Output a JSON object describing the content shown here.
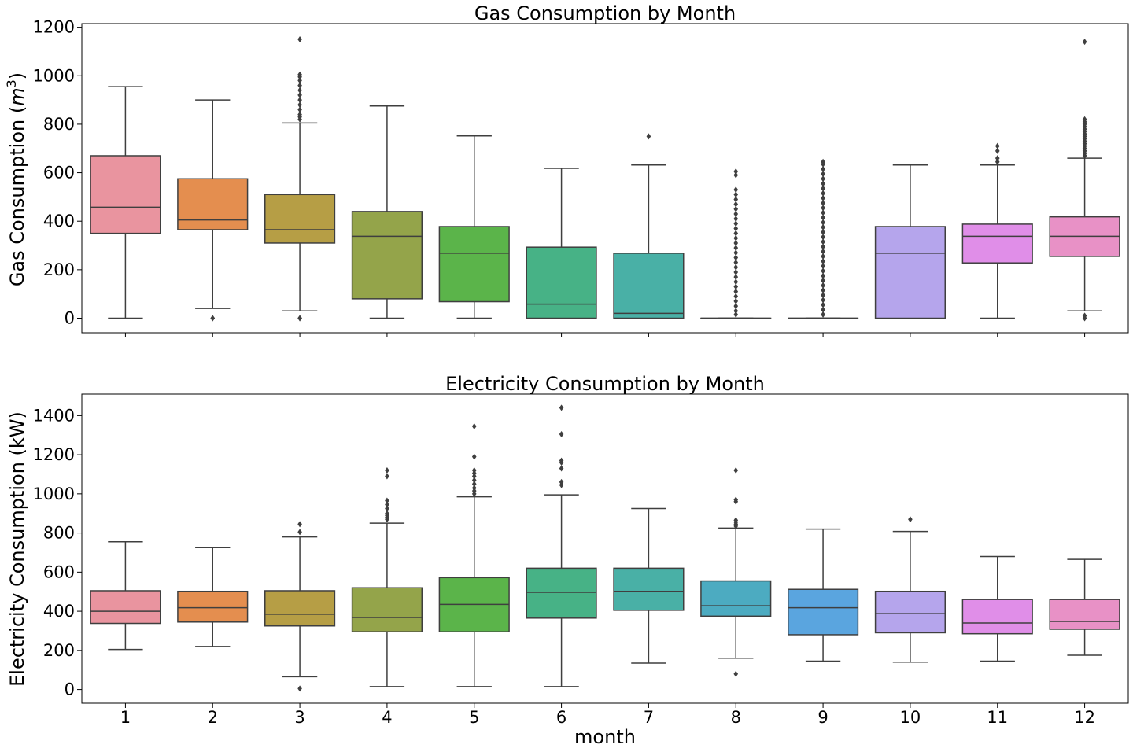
{
  "chart_data": [
    {
      "type": "box",
      "title": "Gas Consumption by Month",
      "ylabel_main": "Gas Consumption (",
      "ylabel_var": "m",
      "ylabel_sup": "3",
      "ylabel_close": ")",
      "xlabel": "",
      "ylim": [
        -60,
        1215
      ],
      "yticks": [
        0,
        200,
        400,
        600,
        800,
        1000,
        1200
      ],
      "categories": [
        "1",
        "2",
        "3",
        "4",
        "5",
        "6",
        "7",
        "8",
        "9",
        "10",
        "11",
        "12"
      ],
      "show_xtick_labels": false,
      "boxes": [
        {
          "month": "1",
          "whislo": 0,
          "q1": 350,
          "median": 458,
          "q3": 670,
          "whishi": 955,
          "fliers": [],
          "color": "#e9949f"
        },
        {
          "month": "2",
          "whislo": 40,
          "q1": 365,
          "median": 405,
          "q3": 575,
          "whishi": 900,
          "fliers": [
            0,
            0
          ],
          "color": "#e48e4f"
        },
        {
          "month": "3",
          "whislo": 30,
          "q1": 310,
          "median": 365,
          "q3": 510,
          "whishi": 805,
          "fliers": [
            0,
            0,
            820,
            830,
            840,
            860,
            880,
            900,
            920,
            940,
            960,
            980,
            995,
            1005,
            1150
          ],
          "color": "#b69e45"
        },
        {
          "month": "4",
          "whislo": 0,
          "q1": 80,
          "median": 338,
          "q3": 440,
          "whishi": 875,
          "fliers": [],
          "color": "#94a44a"
        },
        {
          "month": "5",
          "whislo": 0,
          "q1": 68,
          "median": 268,
          "q3": 378,
          "whishi": 752,
          "fliers": [],
          "color": "#5bb44a"
        },
        {
          "month": "6",
          "whislo": 0,
          "q1": 0,
          "median": 58,
          "q3": 293,
          "whishi": 618,
          "fliers": [],
          "color": "#47b286"
        },
        {
          "month": "7",
          "whislo": 0,
          "q1": 0,
          "median": 20,
          "q3": 268,
          "whishi": 632,
          "fliers": [
            750
          ],
          "color": "#49b0a6"
        },
        {
          "month": "8",
          "whislo": 0,
          "q1": 0,
          "median": 0,
          "q3": 0,
          "whishi": 0,
          "fliers": [
            15,
            30,
            50,
            70,
            90,
            110,
            130,
            150,
            170,
            190,
            210,
            230,
            250,
            270,
            290,
            310,
            330,
            350,
            370,
            390,
            410,
            430,
            450,
            470,
            490,
            510,
            530,
            590,
            605
          ],
          "color": "#4cabc1"
        },
        {
          "month": "9",
          "whislo": 0,
          "q1": 0,
          "median": 0,
          "q3": 0,
          "whishi": 0,
          "fliers": [
            15,
            35,
            55,
            75,
            95,
            115,
            135,
            155,
            175,
            195,
            215,
            235,
            255,
            275,
            295,
            315,
            335,
            355,
            375,
            395,
            415,
            435,
            455,
            475,
            495,
            515,
            535,
            555,
            575,
            595,
            615,
            635,
            645
          ],
          "color": "#5aa5df"
        },
        {
          "month": "10",
          "whislo": 0,
          "q1": 0,
          "median": 268,
          "q3": 378,
          "whishi": 632,
          "fliers": [],
          "color": "#b5a5ec"
        },
        {
          "month": "11",
          "whislo": 0,
          "q1": 228,
          "median": 338,
          "q3": 388,
          "whishi": 632,
          "fliers": [
            645,
            660,
            690,
            710
          ],
          "color": "#e08ee8"
        },
        {
          "month": "12",
          "whislo": 30,
          "q1": 255,
          "median": 338,
          "q3": 418,
          "whishi": 660,
          "fliers": [
            0,
            10,
            670,
            680,
            690,
            700,
            710,
            720,
            730,
            740,
            750,
            760,
            770,
            780,
            790,
            800,
            810,
            820,
            1140
          ],
          "color": "#e891c6"
        }
      ]
    },
    {
      "type": "box",
      "title": "Electricity Consumption by Month",
      "ylabel_main": "Electricity Consumption (kW)",
      "xlabel": "month",
      "ylim": [
        -70,
        1510
      ],
      "yticks": [
        0,
        200,
        400,
        600,
        800,
        1000,
        1200,
        1400
      ],
      "categories": [
        "1",
        "2",
        "3",
        "4",
        "5",
        "6",
        "7",
        "8",
        "9",
        "10",
        "11",
        "12"
      ],
      "show_xtick_labels": true,
      "boxes": [
        {
          "month": "1",
          "whislo": 205,
          "q1": 338,
          "median": 400,
          "q3": 505,
          "whishi": 755,
          "fliers": [],
          "color": "#e9949f"
        },
        {
          "month": "2",
          "whislo": 220,
          "q1": 345,
          "median": 418,
          "q3": 502,
          "whishi": 725,
          "fliers": [],
          "color": "#e48e4f"
        },
        {
          "month": "3",
          "whislo": 65,
          "q1": 325,
          "median": 385,
          "q3": 505,
          "whishi": 780,
          "fliers": [
            5,
            805,
            845
          ],
          "color": "#b69e45"
        },
        {
          "month": "4",
          "whislo": 15,
          "q1": 295,
          "median": 368,
          "q3": 520,
          "whishi": 850,
          "fliers": [
            870,
            880,
            890,
            900,
            925,
            945,
            965,
            1090,
            1120
          ],
          "color": "#94a44a"
        },
        {
          "month": "5",
          "whislo": 15,
          "q1": 295,
          "median": 435,
          "q3": 572,
          "whishi": 985,
          "fliers": [
            1000,
            1015,
            1030,
            1050,
            1070,
            1090,
            1105,
            1120,
            1190,
            1345
          ],
          "color": "#5bb44a"
        },
        {
          "month": "6",
          "whislo": 15,
          "q1": 365,
          "median": 497,
          "q3": 620,
          "whishi": 995,
          "fliers": [
            1045,
            1060,
            1130,
            1160,
            1170,
            1305,
            1440
          ],
          "color": "#47b286"
        },
        {
          "month": "7",
          "whislo": 135,
          "q1": 405,
          "median": 502,
          "q3": 620,
          "whishi": 925,
          "fliers": [],
          "color": "#49b0a6"
        },
        {
          "month": "8",
          "whislo": 160,
          "q1": 375,
          "median": 428,
          "q3": 555,
          "whishi": 825,
          "fliers": [
            80,
            835,
            845,
            855,
            865,
            960,
            970,
            1120
          ],
          "color": "#4cabc1"
        },
        {
          "month": "9",
          "whislo": 145,
          "q1": 280,
          "median": 418,
          "q3": 512,
          "whishi": 820,
          "fliers": [],
          "color": "#5aa5df"
        },
        {
          "month": "10",
          "whislo": 140,
          "q1": 290,
          "median": 388,
          "q3": 502,
          "whishi": 808,
          "fliers": [
            870
          ],
          "color": "#b5a5ec"
        },
        {
          "month": "11",
          "whislo": 145,
          "q1": 285,
          "median": 340,
          "q3": 460,
          "whishi": 680,
          "fliers": [],
          "color": "#e08ee8"
        },
        {
          "month": "12",
          "whislo": 175,
          "q1": 308,
          "median": 348,
          "q3": 460,
          "whishi": 665,
          "fliers": [],
          "color": "#e891c6"
        }
      ]
    }
  ]
}
